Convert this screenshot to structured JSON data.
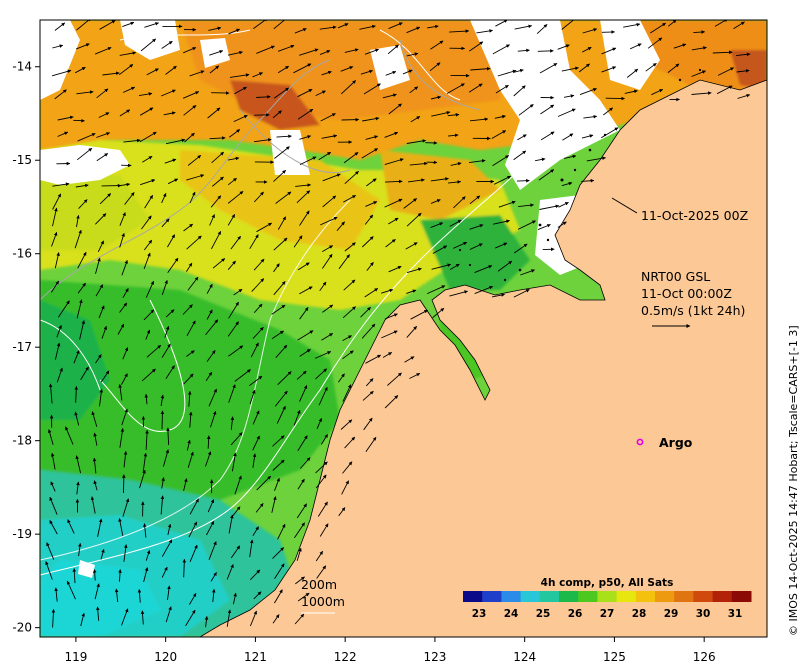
{
  "map": {
    "lon_ticks": [
      "119",
      "120",
      "121",
      "122",
      "123",
      "124",
      "125",
      "126"
    ],
    "lat_ticks": [
      "-14",
      "-15",
      "-16",
      "-17",
      "-18",
      "-19",
      "-20"
    ],
    "lon_range": [
      118.6,
      126.7
    ],
    "lat_range": [
      -20.1,
      -13.5
    ]
  },
  "annotations": {
    "date_label": "11-Oct-2025 00Z",
    "current_source": "NRT00 GSL",
    "current_time": "11-Oct 00:00Z",
    "current_scale": "0.5m/s (1kt 24h)",
    "argo_label": "Argo",
    "contour_200": "200m",
    "contour_1000": "1000m",
    "credit": "© IMOS 14-Oct-2025 14:47 Hobart; Tscale=CARS+[-1 3]"
  },
  "colorbar": {
    "title": "4h comp, p50, All Sats",
    "labels": [
      "23",
      "24",
      "25",
      "26",
      "27",
      "28",
      "29",
      "30",
      "31"
    ],
    "colors": [
      "#0b0b8a",
      "#1f3fc8",
      "#2b8be8",
      "#27c7d8",
      "#22c7a0",
      "#1bb84a",
      "#4cc81e",
      "#a8e01a",
      "#e8e60f",
      "#f4c10e",
      "#ee9a10",
      "#e07410",
      "#cf4a0c",
      "#b22208",
      "#8c0a05"
    ]
  },
  "colors": {
    "land": "#fcc896",
    "coast": "#000000",
    "argo": "#e600e6",
    "contour": "#ffffff",
    "bathy": "#a8a8a8"
  }
}
